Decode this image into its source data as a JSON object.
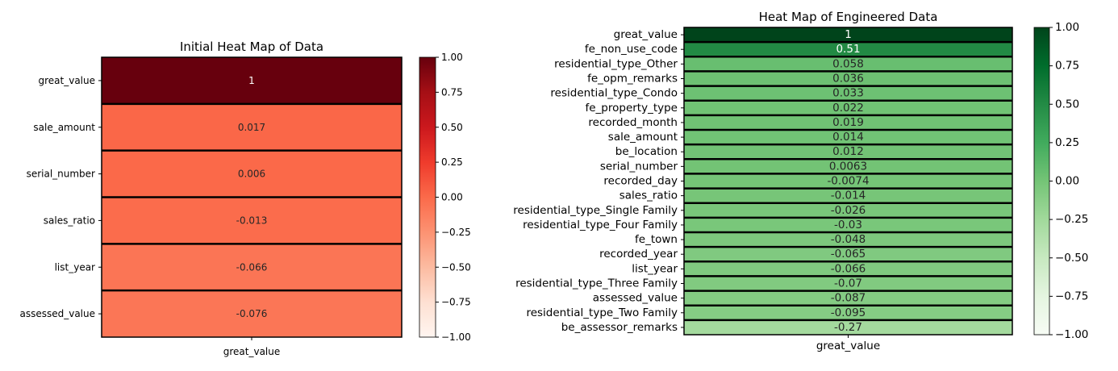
{
  "chart_data": [
    {
      "type": "heatmap",
      "title": "Initial Heat Map of Data",
      "xlabel": "",
      "ylabel": "",
      "x_categories": [
        "great_value"
      ],
      "rows": [
        {
          "label": "great_value",
          "value": 1,
          "text": "1"
        },
        {
          "label": "sale_amount",
          "value": 0.017,
          "text": "0.017"
        },
        {
          "label": "serial_number",
          "value": 0.006,
          "text": "0.006"
        },
        {
          "label": "sales_ratio",
          "value": -0.013,
          "text": "-0.013"
        },
        {
          "label": "list_year",
          "value": -0.066,
          "text": "-0.066"
        },
        {
          "label": "assessed_value",
          "value": -0.076,
          "text": "-0.076"
        }
      ],
      "colormap": "Reds",
      "vmin": -1,
      "vmax": 1,
      "colorbar_ticks": [
        {
          "value": 1.0,
          "label": "1.00"
        },
        {
          "value": 0.75,
          "label": "0.75"
        },
        {
          "value": 0.5,
          "label": "0.50"
        },
        {
          "value": 0.25,
          "label": "0.25"
        },
        {
          "value": 0.0,
          "label": "0.00"
        },
        {
          "value": -0.25,
          "label": "−0.25"
        },
        {
          "value": -0.5,
          "label": "−0.50"
        },
        {
          "value": -0.75,
          "label": "−0.75"
        },
        {
          "value": -1.0,
          "label": "−1.00"
        }
      ]
    },
    {
      "type": "heatmap",
      "title": "Heat Map of Engineered Data",
      "xlabel": "",
      "ylabel": "",
      "x_categories": [
        "great_value"
      ],
      "rows": [
        {
          "label": "great_value",
          "value": 1,
          "text": "1"
        },
        {
          "label": "fe_non_use_code",
          "value": 0.51,
          "text": "0.51"
        },
        {
          "label": "residential_type_Other",
          "value": 0.058,
          "text": "0.058"
        },
        {
          "label": "fe_opm_remarks",
          "value": 0.036,
          "text": "0.036"
        },
        {
          "label": "residential_type_Condo",
          "value": 0.033,
          "text": "0.033"
        },
        {
          "label": "fe_property_type",
          "value": 0.022,
          "text": "0.022"
        },
        {
          "label": "recorded_month",
          "value": 0.019,
          "text": "0.019"
        },
        {
          "label": "sale_amount",
          "value": 0.014,
          "text": "0.014"
        },
        {
          "label": "be_location",
          "value": 0.012,
          "text": "0.012"
        },
        {
          "label": "serial_number",
          "value": 0.0063,
          "text": "0.0063"
        },
        {
          "label": "recorded_day",
          "value": -0.0074,
          "text": "-0.0074"
        },
        {
          "label": "sales_ratio",
          "value": -0.014,
          "text": "-0.014"
        },
        {
          "label": "residential_type_Single Family",
          "value": -0.026,
          "text": "-0.026"
        },
        {
          "label": "residential_type_Four Family",
          "value": -0.03,
          "text": "-0.03"
        },
        {
          "label": "fe_town",
          "value": -0.048,
          "text": "-0.048"
        },
        {
          "label": "recorded_year",
          "value": -0.065,
          "text": "-0.065"
        },
        {
          "label": "list_year",
          "value": -0.066,
          "text": "-0.066"
        },
        {
          "label": "residential_type_Three Family",
          "value": -0.07,
          "text": "-0.07"
        },
        {
          "label": "assessed_value",
          "value": -0.087,
          "text": "-0.087"
        },
        {
          "label": "residential_type_Two Family",
          "value": -0.095,
          "text": "-0.095"
        },
        {
          "label": "be_assessor_remarks",
          "value": -0.27,
          "text": "-0.27"
        }
      ],
      "colormap": "Greens",
      "vmin": -1,
      "vmax": 1,
      "colorbar_ticks": [
        {
          "value": 1.0,
          "label": "1.00"
        },
        {
          "value": 0.75,
          "label": "0.75"
        },
        {
          "value": 0.5,
          "label": "0.50"
        },
        {
          "value": 0.25,
          "label": "0.25"
        },
        {
          "value": 0.0,
          "label": "0.00"
        },
        {
          "value": -0.25,
          "label": "−0.25"
        },
        {
          "value": -0.5,
          "label": "−0.50"
        },
        {
          "value": -0.75,
          "label": "−0.75"
        },
        {
          "value": -1.0,
          "label": "−1.00"
        }
      ]
    }
  ]
}
